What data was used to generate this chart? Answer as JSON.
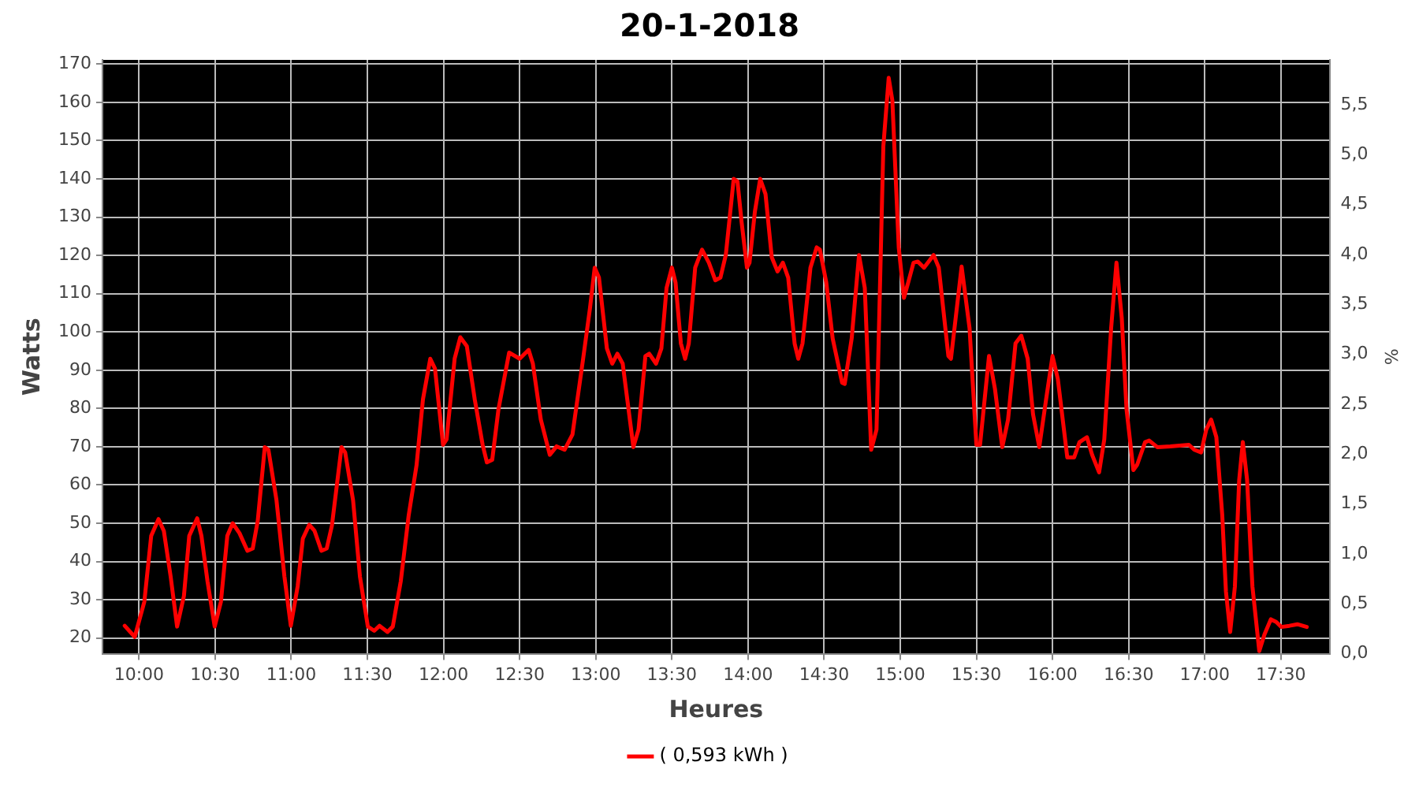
{
  "chart_data": {
    "type": "line",
    "title": "20-1-2018",
    "xlabel": "Heures",
    "ylabel": "Watts",
    "y2label": "%",
    "xlim": [
      9.76,
      17.82
    ],
    "xticks": [
      {
        "value": 10,
        "label": "10:00"
      },
      {
        "value": 10.5,
        "label": "10:30"
      },
      {
        "value": 11,
        "label": "11:00"
      },
      {
        "value": 11.5,
        "label": "11:30"
      },
      {
        "value": 12,
        "label": "12:00"
      },
      {
        "value": 12.5,
        "label": "12:30"
      },
      {
        "value": 13,
        "label": "13:00"
      },
      {
        "value": 13.5,
        "label": "13:30"
      },
      {
        "value": 14,
        "label": "14:00"
      },
      {
        "value": 14.5,
        "label": "14:30"
      },
      {
        "value": 15,
        "label": "15:00"
      },
      {
        "value": 15.5,
        "label": "15:30"
      },
      {
        "value": 16,
        "label": "16:00"
      },
      {
        "value": 16.5,
        "label": "16:30"
      },
      {
        "value": 17,
        "label": "17:00"
      },
      {
        "value": 17.5,
        "label": "17:30"
      }
    ],
    "ylim": [
      15.9,
      171.1
    ],
    "yticks": [
      20,
      30,
      40,
      50,
      60,
      70,
      80,
      90,
      100,
      110,
      120,
      130,
      140,
      150,
      160,
      170
    ],
    "y2lim": [
      0,
      5.95
    ],
    "y2ticks": [
      {
        "value": 0,
        "label": "0,0"
      },
      {
        "value": 0.5,
        "label": "0,5"
      },
      {
        "value": 1,
        "label": "1,0"
      },
      {
        "value": 1.5,
        "label": "1,5"
      },
      {
        "value": 2,
        "label": "2,0"
      },
      {
        "value": 2.5,
        "label": "2,5"
      },
      {
        "value": 3,
        "label": "3,0"
      },
      {
        "value": 3.5,
        "label": "3,5"
      },
      {
        "value": 4,
        "label": "4,0"
      },
      {
        "value": 4.5,
        "label": "4,5"
      },
      {
        "value": 5,
        "label": "5,0"
      },
      {
        "value": 5.5,
        "label": "5,5"
      }
    ],
    "grid": true,
    "legend": "bottom",
    "marker": "none",
    "line_style": "solid",
    "series": [
      {
        "name": "( 0,593 kWh )",
        "color": "#ff0000",
        "x": [
          9.906,
          9.972,
          10.035,
          10.08,
          10.128,
          10.163,
          10.208,
          10.25,
          10.295,
          10.33,
          10.382,
          10.41,
          10.45,
          10.497,
          10.538,
          10.58,
          10.615,
          10.66,
          10.712,
          10.747,
          10.78,
          10.826,
          10.85,
          10.903,
          10.955,
          10.997,
          11.042,
          11.076,
          11.118,
          11.153,
          11.198,
          11.233,
          11.267,
          11.33,
          11.354,
          11.406,
          11.451,
          11.503,
          11.545,
          11.58,
          11.632,
          11.667,
          11.719,
          11.771,
          11.823,
          11.865,
          11.913,
          11.944,
          11.997,
          12.02,
          12.073,
          12.11,
          12.153,
          12.205,
          12.257,
          12.285,
          12.32,
          12.361,
          12.431,
          12.5,
          12.559,
          12.587,
          12.639,
          12.698,
          12.743,
          12.795,
          12.847,
          12.917,
          12.962,
          12.993,
          13.021,
          13.073,
          13.108,
          13.142,
          13.177,
          13.247,
          13.281,
          13.326,
          13.351,
          13.396,
          13.431,
          13.465,
          13.5,
          13.524,
          13.559,
          13.587,
          13.611,
          13.653,
          13.698,
          13.743,
          13.785,
          13.819,
          13.854,
          13.906,
          13.931,
          13.958,
          13.993,
          14.01,
          14.045,
          14.08,
          14.115,
          14.156,
          14.194,
          14.229,
          14.264,
          14.306,
          14.33,
          14.358,
          14.41,
          14.451,
          14.472,
          14.514,
          14.556,
          14.618,
          14.635,
          14.681,
          14.729,
          14.767,
          14.809,
          14.844,
          14.889,
          14.924,
          14.948,
          14.99,
          15.024,
          15.052,
          15.087,
          15.115,
          15.156,
          15.219,
          15.253,
          15.316,
          15.333,
          15.403,
          15.455,
          15.5,
          15.524,
          15.583,
          15.622,
          15.67,
          15.708,
          15.757,
          15.795,
          15.837,
          15.872,
          15.913,
          15.958,
          16,
          16.035,
          16.097,
          16.142,
          16.177,
          16.226,
          16.26,
          16.306,
          16.34,
          16.385,
          16.42,
          16.455,
          16.486,
          16.531,
          16.556,
          16.608,
          16.635,
          16.688,
          16.774,
          16.896,
          16.931,
          16.976,
          17.01,
          17.042,
          17.076,
          17.115,
          17.139,
          17.167,
          17.198,
          17.226,
          17.25,
          17.278,
          17.313,
          17.358,
          17.392,
          17.434,
          17.469,
          17.503,
          17.556,
          17.608,
          17.67
        ],
        "values": [
          23.2,
          20.3,
          29.5,
          46.7,
          51.1,
          48,
          36,
          23,
          31,
          46.7,
          51.3,
          46.7,
          34.8,
          23,
          29.5,
          46.7,
          50,
          47.4,
          42.8,
          43.4,
          50.7,
          69.9,
          69.2,
          56,
          36.1,
          23.2,
          33.5,
          46,
          49.6,
          48,
          42.8,
          43.4,
          49.4,
          69.9,
          68.5,
          56,
          36.1,
          23,
          21.9,
          23.2,
          21.6,
          23,
          34.8,
          52,
          65.2,
          82.4,
          93,
          90.4,
          70.5,
          71.9,
          93,
          98.6,
          96.3,
          82.4,
          70.5,
          65.9,
          66.6,
          79.8,
          94.6,
          93,
          95.3,
          91.7,
          77.1,
          67.9,
          70.1,
          69.2,
          73.2,
          93,
          106.2,
          116.8,
          114.2,
          95.7,
          91.7,
          94.3,
          91.7,
          69.9,
          74.5,
          93.7,
          94.3,
          91.7,
          95.7,
          111.5,
          116.8,
          112.9,
          97,
          93,
          97,
          116.8,
          121.5,
          118.1,
          113.5,
          114.2,
          120.1,
          140,
          139.3,
          128.7,
          116.8,
          118.1,
          131.4,
          140,
          136,
          119.5,
          115.8,
          118.1,
          114.2,
          97,
          93,
          97,
          116.8,
          122.1,
          121.5,
          112.9,
          98.3,
          86.7,
          86.4,
          98.3,
          120.1,
          111.5,
          69.2,
          74.5,
          148.6,
          166.4,
          160.5,
          122.1,
          108.9,
          112.9,
          118.1,
          118.4,
          116.8,
          120.1,
          116.8,
          93.7,
          93,
          117.1,
          101,
          70.5,
          70.5,
          93.7,
          85.1,
          69.9,
          77.1,
          97,
          99,
          93,
          78.5,
          69.9,
          82.4,
          93.7,
          87.7,
          67.2,
          67.2,
          71.2,
          72.5,
          67.9,
          63.3,
          71.9,
          101,
          118.1,
          103.6,
          79.8,
          63.9,
          65.3,
          71.2,
          71.6,
          69.9,
          70.1,
          70.5,
          69.2,
          68.5,
          74.5,
          77.1,
          72.5,
          52,
          32.2,
          21.6,
          33.5,
          61.3,
          71.2,
          61.3,
          33.5,
          16.6,
          20.9,
          24.9,
          24.2,
          22.9,
          23.2,
          23.6,
          22.9
        ]
      }
    ]
  }
}
